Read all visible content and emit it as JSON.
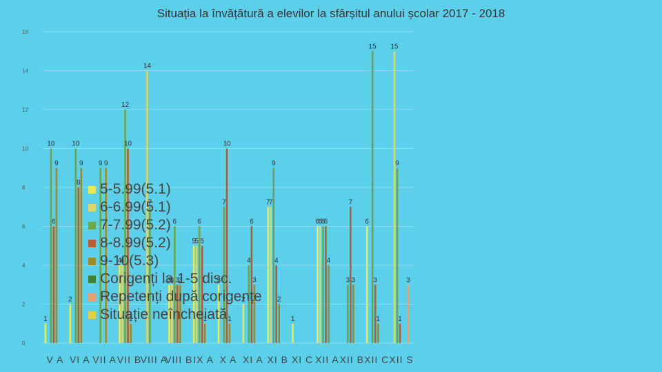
{
  "chart_data": {
    "type": "bar",
    "title": "Situația la învățătură a elevilor la sfârșitul anului școlar 2017 - 2018",
    "xlabel": "",
    "ylabel": "",
    "ylim": [
      0,
      16
    ],
    "yticks": [
      0,
      2,
      4,
      6,
      8,
      10,
      12,
      14,
      16
    ],
    "grid": true,
    "legend_position": "center-left",
    "categories": [
      "V A",
      "VI A",
      "VII A",
      "VII B",
      "VIII A",
      "VIII B",
      "IX A",
      "X A",
      "XI A",
      "XI B",
      "XI C",
      "XII A",
      "XII B",
      "XII C",
      "XII S"
    ],
    "series": [
      {
        "name": "5-5.99(5.1)",
        "color": "#e8e85a",
        "values": [
          1,
          2,
          0,
          4,
          0,
          3,
          5,
          3,
          2,
          7,
          1,
          6,
          0,
          6,
          0
        ]
      },
      {
        "name": "6-6.99(5.1)",
        "color": "#d9d96b",
        "values": [
          0,
          0,
          0,
          4,
          14,
          3,
          5,
          0,
          0,
          7,
          0,
          6,
          0,
          0,
          15
        ]
      },
      {
        "name": "7-7.99(5.2)",
        "color": "#6aa64f",
        "values": [
          10,
          10,
          9,
          12,
          7,
          6,
          6,
          7,
          4,
          9,
          0,
          6,
          3,
          15,
          9
        ]
      },
      {
        "name": "8-8.99(5.2)",
        "color": "#b0602e",
        "values": [
          6,
          8,
          0,
          10,
          0,
          3,
          5,
          10,
          6,
          4,
          0,
          6,
          7,
          3,
          1
        ]
      },
      {
        "name": "9-10(5.3)",
        "color": "#9c8a2a",
        "values": [
          9,
          9,
          9,
          1,
          0,
          3,
          1,
          1,
          3,
          2,
          0,
          4,
          3,
          1,
          0
        ]
      },
      {
        "name": "Corigenți la 1-5 disc.",
        "color": "#3f7f36",
        "values": [
          0,
          0,
          0,
          0,
          0,
          0,
          0,
          0,
          0,
          0,
          0,
          0,
          0,
          0,
          0
        ]
      },
      {
        "name": "Repetenți după corigențe",
        "color": "#e8a070",
        "values": [
          0,
          0,
          0,
          0,
          0,
          0,
          0,
          0,
          0,
          0,
          0,
          0,
          0,
          0,
          3
        ]
      },
      {
        "name": "Situație neîncheiată",
        "color": "#e3d04a",
        "values": [
          0,
          0,
          0,
          0,
          0,
          0,
          0,
          0,
          0,
          0,
          0,
          0,
          0,
          0,
          0
        ]
      }
    ]
  }
}
